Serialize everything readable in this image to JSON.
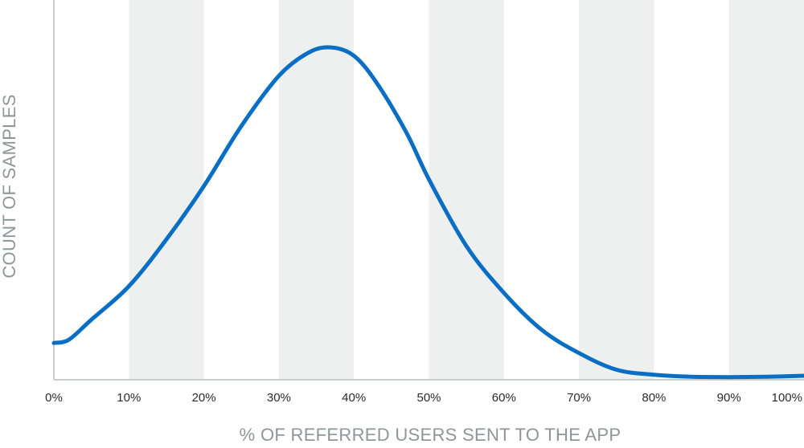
{
  "chart_data": {
    "type": "line",
    "title": "",
    "xlabel": "% OF REFERRED USERS SENT TO THE APP",
    "ylabel": "COUNT OF SAMPLES",
    "xlim": [
      0,
      100
    ],
    "ylim": [
      0,
      100
    ],
    "x_ticks": [
      "0%",
      "10%",
      "20%",
      "30%",
      "40%",
      "50%",
      "60%",
      "70%",
      "80%",
      "90%",
      "100%"
    ],
    "grid": "alternating vertical bands",
    "series": [
      {
        "x": [
          0,
          2,
          5,
          10,
          15,
          20,
          25,
          30,
          34,
          37,
          40,
          43,
          47,
          50,
          55,
          60,
          65,
          70,
          75,
          80,
          85,
          90,
          95,
          100
        ],
        "y": [
          11,
          12,
          18,
          28,
          42,
          58,
          76,
          91,
          98,
          99.5,
          97,
          89,
          74,
          60,
          40,
          26,
          15,
          8,
          3,
          1.5,
          0.9,
          0.8,
          0.9,
          1.2
        ],
        "color": "#0a6fc4"
      }
    ],
    "colors": {
      "line": "#0a6fc4",
      "band": "#eef0f0",
      "axis": "#c9cdcf"
    }
  }
}
